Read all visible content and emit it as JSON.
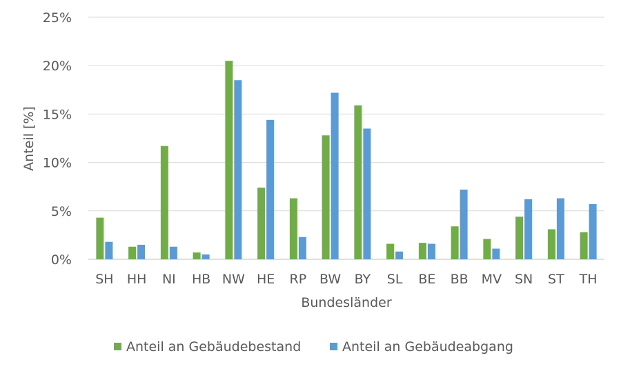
{
  "chart_data": {
    "type": "bar",
    "title": "",
    "xlabel": "Bundesländer",
    "ylabel": "Anteil [%]",
    "ylim": [
      0,
      25
    ],
    "yticks": [
      "0%",
      "5%",
      "10%",
      "15%",
      "20%",
      "25%"
    ],
    "ytick_values": [
      0,
      5,
      10,
      15,
      20,
      25
    ],
    "grid": true,
    "legend_position": "bottom",
    "categories": [
      "SH",
      "HH",
      "NI",
      "HB",
      "NW",
      "HE",
      "RP",
      "BW",
      "BY",
      "SL",
      "BE",
      "BB",
      "MV",
      "SN",
      "ST",
      "TH"
    ],
    "series": [
      {
        "name": "Anteil an Gebäudebestand",
        "color": "#70ad47",
        "values": [
          4.3,
          1.3,
          11.7,
          0.7,
          20.5,
          7.4,
          6.3,
          12.8,
          15.9,
          1.6,
          1.7,
          3.4,
          2.1,
          4.4,
          3.1,
          2.8
        ]
      },
      {
        "name": "Anteil an Gebäudeabgang",
        "color": "#5b9bd5",
        "values": [
          1.8,
          1.5,
          1.3,
          0.5,
          18.5,
          14.4,
          2.3,
          17.2,
          13.5,
          0.8,
          1.6,
          7.2,
          1.1,
          6.2,
          6.3,
          5.7
        ]
      }
    ]
  }
}
